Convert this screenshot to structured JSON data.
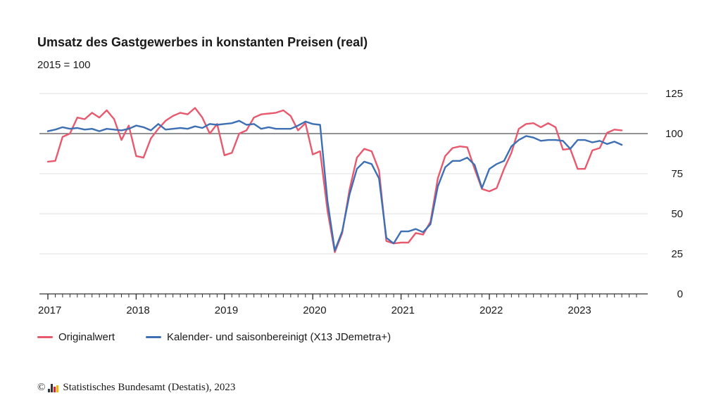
{
  "chart_data": {
    "type": "line",
    "title": "Umsatz des Gastgewerbes in konstanten Preisen (real)",
    "subtitle": "2015 = 100",
    "x_ticks": [
      "2017",
      "2018",
      "2019",
      "2020",
      "2021",
      "2022",
      "2023"
    ],
    "y_ticks": [
      "0",
      "25",
      "50",
      "75",
      "100",
      "125"
    ],
    "ylim": [
      0,
      130
    ],
    "reference_line": 100,
    "grid": "horizontal",
    "legend_position": "bottom-left",
    "start_month": "2017-01",
    "series": [
      {
        "name": "Originalwert",
        "color": "#e8596e",
        "values": [
          82.5,
          83,
          98,
          100,
          110,
          109,
          113,
          110,
          114.5,
          109,
          96,
          105,
          86,
          85,
          97,
          103,
          108,
          111,
          113,
          112,
          116,
          110,
          100,
          106,
          86.5,
          88,
          100,
          102,
          110,
          112,
          112.5,
          113,
          114.5,
          111,
          102,
          106.5,
          87,
          89,
          52,
          26,
          38,
          65,
          85,
          90.5,
          89,
          77,
          33,
          31.5,
          32,
          32,
          38,
          37,
          45,
          72,
          86,
          91,
          92,
          91.5,
          78,
          65.5,
          64,
          66,
          78,
          88,
          103,
          106,
          106.5,
          104,
          106.5,
          104,
          90,
          90.5,
          78,
          78,
          89.5,
          91,
          100.5,
          102.5,
          102
        ]
      },
      {
        "name": "Kalender- und saisonbereinigt (X13 JDemetra+)",
        "color": "#3d6fb4",
        "values": [
          101.5,
          102.5,
          104,
          103,
          103.5,
          102.5,
          103,
          101.5,
          103,
          102.5,
          102,
          103,
          105,
          104,
          102,
          106,
          102.5,
          103,
          103.5,
          103,
          104.5,
          103.5,
          106,
          105.5,
          106,
          106.5,
          108,
          105.5,
          106,
          103,
          104,
          103,
          103,
          103,
          105,
          107.5,
          106,
          105.5,
          58,
          27,
          39,
          62,
          78,
          82.5,
          81,
          72,
          35,
          31.5,
          39,
          39,
          40.5,
          38.5,
          43.5,
          67,
          79,
          83,
          83,
          85,
          80.5,
          66,
          78,
          81,
          83,
          92,
          96,
          98.5,
          97.5,
          95.5,
          96,
          96,
          95.5,
          90.5,
          96,
          96,
          94.5,
          95.5,
          93.5,
          95,
          93
        ]
      }
    ]
  },
  "footer": {
    "copyright": "©",
    "source": "Statistisches Bundesamt (Destatis), 2023"
  }
}
